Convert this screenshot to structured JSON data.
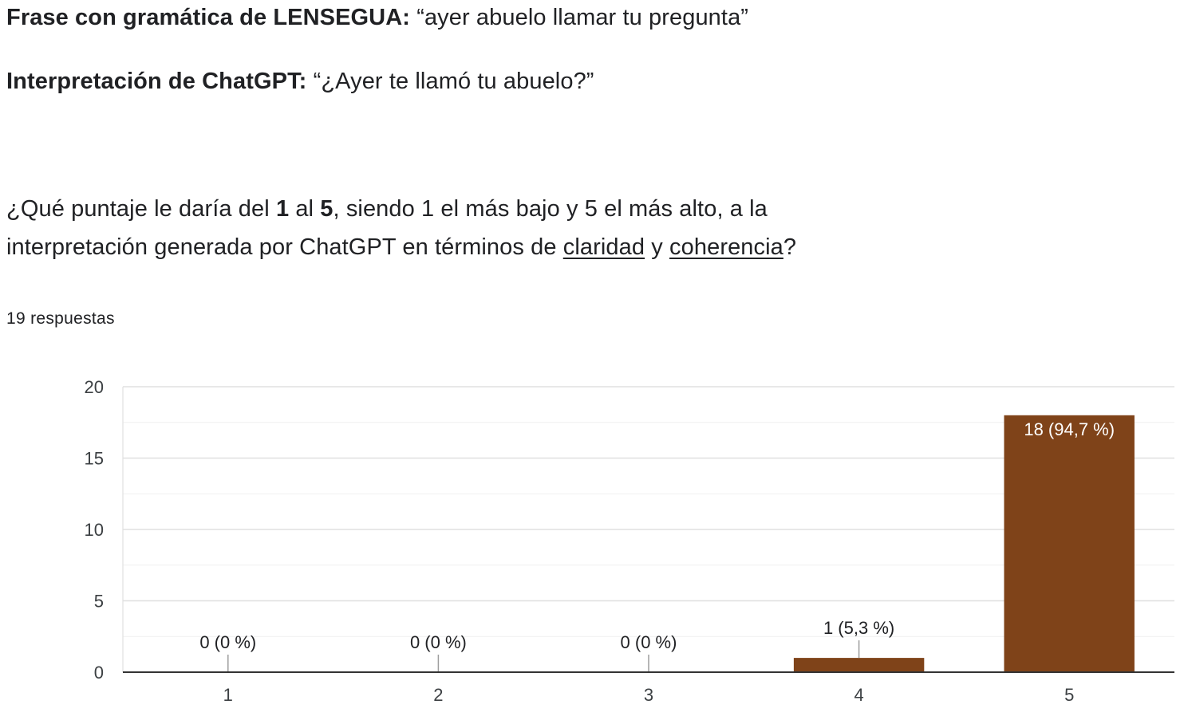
{
  "header": {
    "sentence_label": "Frase con gramática de LENSEGUA:",
    "sentence_text": "“ayer abuelo llamar tu pregunta”",
    "interp_label": "Interpretación de ChatGPT:",
    "interp_text": "“¿Ayer te llamó tu abuelo?”"
  },
  "question": {
    "p1": "¿Qué puntaje le daría del ",
    "b1": "1",
    "p2": " al ",
    "b2": "5",
    "p3": ", siendo 1 el más bajo y 5 el más alto, a la",
    "p4": "interpretación generada por ChatGPT en términos de ",
    "u1": "claridad",
    "p5": " y ",
    "u2": "coherencia",
    "p6": "?"
  },
  "responses": "19 respuestas",
  "chart_data": {
    "type": "bar",
    "categories": [
      "1",
      "2",
      "3",
      "4",
      "5"
    ],
    "values": [
      0,
      0,
      0,
      1,
      18
    ],
    "data_labels": [
      "0 (0 %)",
      "0 (0 %)",
      "0 (0 %)",
      "1 (5,3 %)",
      "18 (94,7 %)"
    ],
    "ylim": [
      0,
      20
    ],
    "yticks": [
      "0",
      "5",
      "10",
      "15",
      "20"
    ],
    "grid": true,
    "legend": "none",
    "bar_color": "#7f4319",
    "axis_text_color": "#3c4043",
    "grid_color": "#e0e0e0"
  }
}
